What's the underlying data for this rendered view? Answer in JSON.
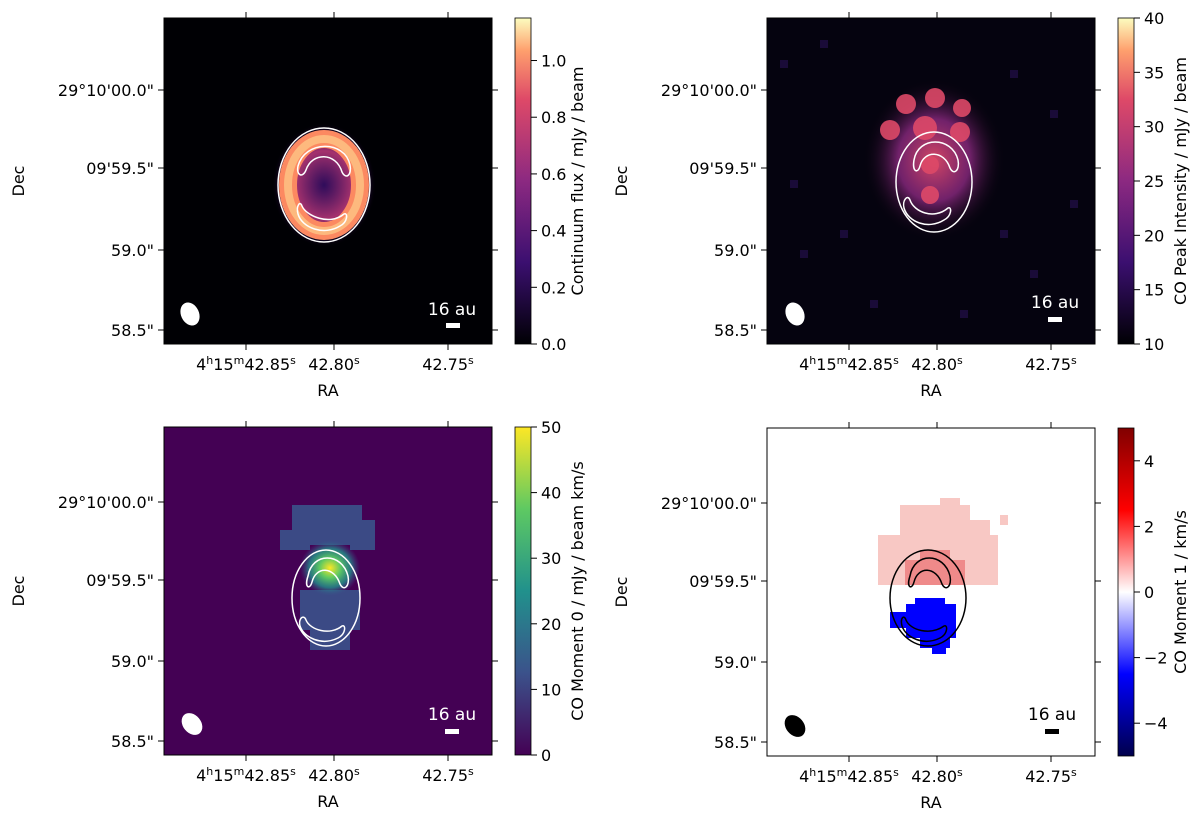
{
  "chart_data": [
    {
      "type": "heatmap",
      "title": "",
      "xlabel": "RA",
      "ylabel": "Dec",
      "x_ticks": [
        "4h15m42.85s",
        "42.80s",
        "42.75s"
      ],
      "y_ticks": [
        "29°10'00.0\"",
        "09'59.5\"",
        "59.0\"",
        "58.5\""
      ],
      "colorbar": {
        "label": "Continuum flux / mJy / beam",
        "min": 0.0,
        "max": 1.15,
        "ticks": [
          "0.0",
          "0.2",
          "0.4",
          "0.6",
          "0.8",
          "1.0"
        ],
        "colormap": "magma"
      },
      "scale_bar_label": "16 au",
      "contours": "white",
      "description_values": {
        "ring_peak": 1.1
      }
    },
    {
      "type": "heatmap",
      "title": "",
      "xlabel": "RA",
      "ylabel": "Dec",
      "x_ticks": [
        "4h15m42.85s",
        "42.80s",
        "42.75s"
      ],
      "y_ticks": [
        "29°10'00.0\"",
        "09'59.5\"",
        "59.0\"",
        "58.5\""
      ],
      "colorbar": {
        "label": "CO Peak Intensity / mJy / beam",
        "min": 10,
        "max": 40,
        "ticks": [
          "10",
          "15",
          "20",
          "25",
          "30",
          "35",
          "40"
        ],
        "colormap": "magma"
      },
      "scale_bar_label": "16 au",
      "contours": "white"
    },
    {
      "type": "heatmap",
      "title": "",
      "xlabel": "RA",
      "ylabel": "Dec",
      "x_ticks": [
        "4h15m42.85s",
        "42.80s",
        "42.75s"
      ],
      "y_ticks": [
        "29°10'00.0\"",
        "09'59.5\"",
        "59.0\"",
        "58.5\""
      ],
      "colorbar": {
        "label": "CO Moment 0 / mJy / beam km/s",
        "min": 0,
        "max": 50,
        "ticks": [
          "0",
          "10",
          "20",
          "30",
          "40",
          "50"
        ],
        "colormap": "viridis"
      },
      "scale_bar_label": "16 au",
      "contours": "white"
    },
    {
      "type": "heatmap",
      "title": "",
      "xlabel": "RA",
      "ylabel": "Dec",
      "x_ticks": [
        "4h15m42.85s",
        "42.80s",
        "42.75s"
      ],
      "y_ticks": [
        "29°10'00.0\"",
        "09'59.5\"",
        "59.0\"",
        "58.5\""
      ],
      "colorbar": {
        "label": "CO Moment 1 / km/s",
        "min": -5,
        "max": 5,
        "ticks": [
          "−4",
          "−2",
          "0",
          "2",
          "4"
        ],
        "colormap": "seismic"
      },
      "scale_bar_label": "16 au",
      "contours": "black"
    }
  ],
  "colors": {
    "magma_dark": "#000004",
    "magma_purple": "#51127c",
    "magma_red": "#b73779",
    "magma_orange": "#fc8961",
    "magma_light": "#fcfdbf",
    "viridis_bg": "#440154",
    "viridis_teal": "#21918c",
    "viridis_green": "#5ec962",
    "viridis_yellow": "#fde725",
    "seismic_blue": "#0000ff",
    "seismic_red": "#ff0000",
    "seismic_darkred": "#800000",
    "seismic_darkblue": "#00004c"
  }
}
